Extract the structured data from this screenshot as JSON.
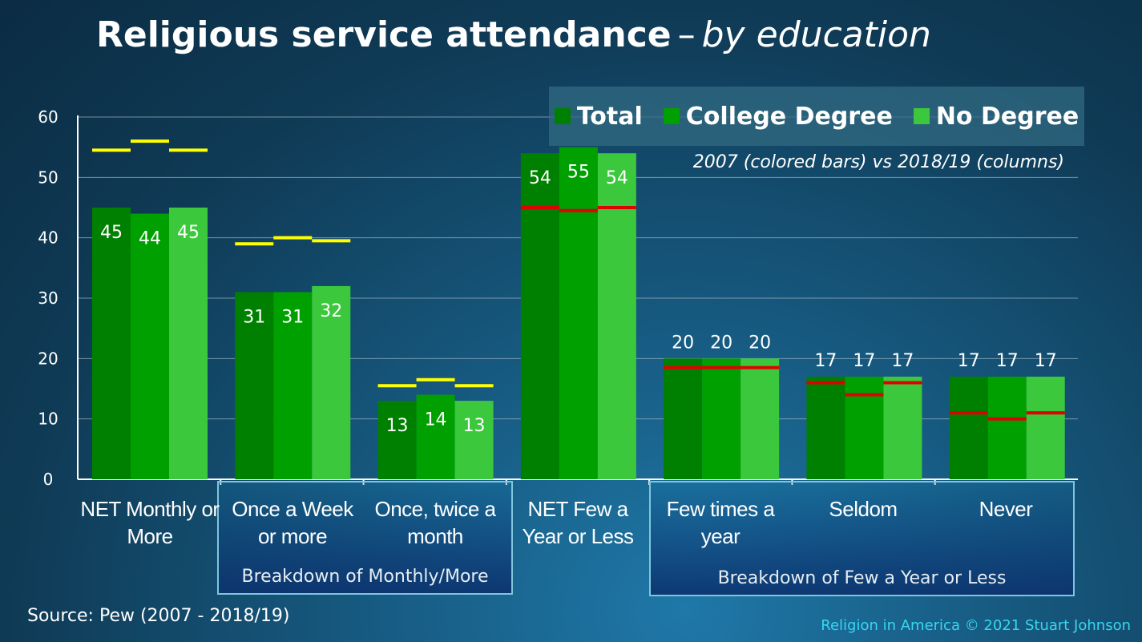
{
  "title": {
    "main": "Religious service attendance",
    "dash": "–",
    "sub": "by education"
  },
  "subtitle": "2007 (colored bars) vs 2018/19 (columns)",
  "legend": [
    {
      "label": "Total",
      "color": "#008000"
    },
    {
      "label": "College Degree",
      "color": "#00a000"
    },
    {
      "label": "No Degree",
      "color": "#3cc83c"
    }
  ],
  "group_captions": [
    "Breakdown of Monthly/More",
    "Breakdown of Few a Year or Less"
  ],
  "source": "Source: Pew (2007 - 2018/19)",
  "credit": "Religion in America © 2021 Stuart Johnson",
  "chart_data": {
    "type": "bar",
    "categories": [
      "NET Monthly or More",
      "Once a Week or more",
      "Once, twice a month",
      "NET Few a Year or Less",
      "Few times a year",
      "Seldom",
      "Never"
    ],
    "series": [
      {
        "name": "Total",
        "color": "#008000",
        "values": [
          45,
          31,
          13,
          54,
          20,
          17,
          17
        ]
      },
      {
        "name": "College Degree",
        "color": "#00a000",
        "values": [
          44,
          31,
          14,
          55,
          20,
          17,
          17
        ]
      },
      {
        "name": "No Degree",
        "color": "#3cc83c",
        "values": [
          45,
          32,
          13,
          54,
          20,
          17,
          17
        ]
      }
    ],
    "markers_2007": [
      [
        54.5,
        56,
        54.5
      ],
      [
        39,
        40,
        39.5
      ],
      [
        15.5,
        16.5,
        15.5
      ],
      [
        45,
        44.5,
        45
      ],
      [
        18.5,
        18.5,
        18.5
      ],
      [
        16,
        14,
        16
      ],
      [
        11,
        10,
        11
      ]
    ],
    "marker_colors": [
      "#ffff00",
      "#ffff00",
      "#ffff00",
      "#e00000",
      "#e00000",
      "#e00000",
      "#e00000"
    ],
    "y_ticks": [
      0,
      10,
      20,
      30,
      40,
      50,
      60
    ],
    "ylim": [
      0,
      60
    ],
    "grid": true,
    "legend_position": "top-right"
  }
}
